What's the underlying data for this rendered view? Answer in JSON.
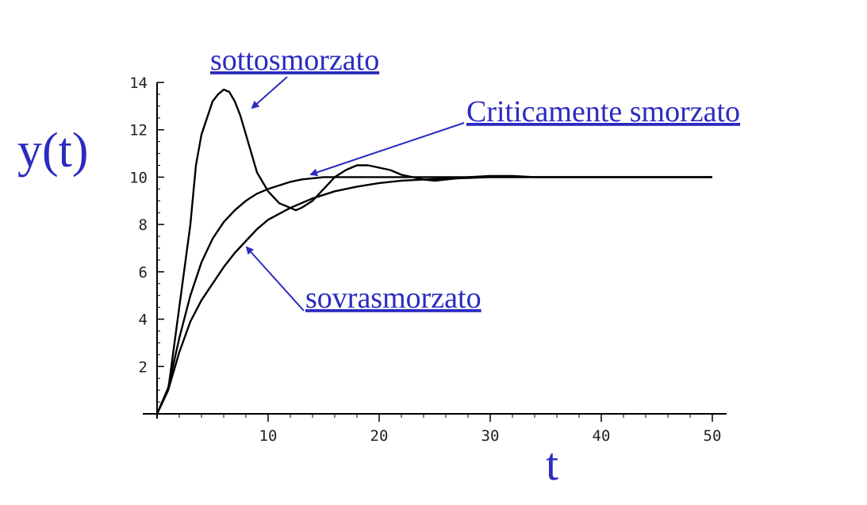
{
  "chart_data": {
    "type": "line",
    "xlabel": "t",
    "ylabel": "y(t)",
    "xlim": [
      0,
      50
    ],
    "ylim": [
      0,
      14
    ],
    "xticks": [
      10,
      20,
      30,
      40,
      50
    ],
    "yticks": [
      2,
      4,
      6,
      8,
      10,
      12,
      14
    ],
    "grid": false,
    "series": [
      {
        "name": "sottosmorzato",
        "x": [
          0,
          1,
          2,
          3,
          3.5,
          4,
          5,
          5.5,
          6,
          6.5,
          7,
          7.5,
          8,
          9,
          10,
          11,
          12,
          12.5,
          13,
          14,
          15,
          16,
          17,
          18,
          19,
          20,
          21,
          22,
          23,
          24,
          25,
          26,
          27,
          28,
          30,
          32,
          34,
          35,
          36,
          38,
          40,
          45,
          50
        ],
        "y": [
          0,
          1.0,
          4.5,
          8.0,
          10.5,
          11.8,
          13.2,
          13.5,
          13.7,
          13.6,
          13.2,
          12.6,
          11.8,
          10.2,
          9.4,
          8.9,
          8.7,
          8.6,
          8.7,
          9.0,
          9.5,
          10.0,
          10.3,
          10.5,
          10.5,
          10.4,
          10.3,
          10.1,
          10.0,
          9.9,
          9.85,
          9.9,
          9.95,
          10.0,
          10.05,
          10.05,
          10.0,
          10.0,
          10.0,
          10.0,
          10.0,
          10.0,
          10.0
        ]
      },
      {
        "name": "Criticamente smorzato",
        "x": [
          0,
          1,
          2,
          3,
          4,
          5,
          6,
          7,
          8,
          9,
          10,
          11,
          12,
          13,
          14,
          15,
          16,
          18,
          20,
          25,
          30,
          40,
          50
        ],
        "y": [
          0,
          1.1,
          3.2,
          5.0,
          6.4,
          7.4,
          8.1,
          8.6,
          9.0,
          9.3,
          9.5,
          9.65,
          9.8,
          9.9,
          9.95,
          10.0,
          10.0,
          10.0,
          10.0,
          10.0,
          10.0,
          10.0,
          10.0
        ]
      },
      {
        "name": "sovrasmorzato",
        "x": [
          0,
          1,
          2,
          3,
          4,
          5,
          6,
          7,
          8,
          9,
          10,
          12,
          14,
          16,
          18,
          20,
          22,
          25,
          28,
          30,
          35,
          40,
          50
        ],
        "y": [
          0,
          1.0,
          2.6,
          3.9,
          4.8,
          5.5,
          6.2,
          6.8,
          7.3,
          7.8,
          8.2,
          8.7,
          9.1,
          9.4,
          9.6,
          9.75,
          9.85,
          9.92,
          9.96,
          10.0,
          10.0,
          10.0,
          10.0
        ]
      }
    ]
  }
}
